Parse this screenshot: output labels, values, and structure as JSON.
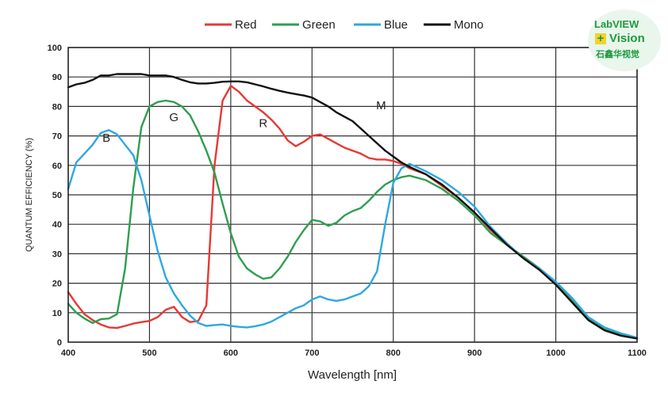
{
  "chart_data": {
    "type": "line",
    "title": "",
    "xlabel": "Wavelength [nm]",
    "ylabel": "QUANTUM EFFICIENCY (%)",
    "xlim": [
      400,
      1100
    ],
    "ylim": [
      0,
      100
    ],
    "xticks": [
      400,
      500,
      600,
      700,
      800,
      900,
      1000,
      1100
    ],
    "yticks": [
      0,
      10,
      20,
      30,
      40,
      50,
      60,
      70,
      80,
      90,
      100
    ],
    "grid": true,
    "legend_position": "top-center",
    "series": [
      {
        "name": "Red",
        "color": "#e53935",
        "tag": "R",
        "tag_at": [
          640,
          73
        ],
        "points": [
          [
            400,
            17
          ],
          [
            410,
            13
          ],
          [
            420,
            9.5
          ],
          [
            430,
            7.5
          ],
          [
            440,
            6
          ],
          [
            450,
            5
          ],
          [
            460,
            4.8
          ],
          [
            470,
            5.5
          ],
          [
            480,
            6.3
          ],
          [
            490,
            6.8
          ],
          [
            500,
            7.2
          ],
          [
            510,
            8.5
          ],
          [
            520,
            11
          ],
          [
            530,
            12
          ],
          [
            540,
            8.5
          ],
          [
            550,
            6.8
          ],
          [
            560,
            7.2
          ],
          [
            570,
            12.5
          ],
          [
            580,
            60
          ],
          [
            590,
            82
          ],
          [
            600,
            87
          ],
          [
            610,
            85
          ],
          [
            620,
            82
          ],
          [
            630,
            80
          ],
          [
            640,
            78
          ],
          [
            650,
            75.5
          ],
          [
            660,
            72.5
          ],
          [
            670,
            68.5
          ],
          [
            680,
            66.5
          ],
          [
            690,
            68
          ],
          [
            700,
            70
          ],
          [
            710,
            70.5
          ],
          [
            720,
            69
          ],
          [
            730,
            67.5
          ],
          [
            740,
            66
          ],
          [
            750,
            65
          ],
          [
            760,
            64
          ],
          [
            770,
            62.5
          ],
          [
            780,
            62
          ],
          [
            790,
            62
          ],
          [
            800,
            61.5
          ],
          [
            810,
            60.5
          ],
          [
            820,
            59
          ],
          [
            840,
            57
          ],
          [
            860,
            53
          ],
          [
            880,
            49
          ],
          [
            900,
            44
          ],
          [
            920,
            38
          ],
          [
            940,
            33
          ],
          [
            960,
            29
          ],
          [
            980,
            25
          ],
          [
            1000,
            20
          ],
          [
            1020,
            14
          ],
          [
            1040,
            8
          ],
          [
            1060,
            4.5
          ],
          [
            1080,
            2.5
          ],
          [
            1100,
            1.5
          ]
        ]
      },
      {
        "name": "Green",
        "color": "#2e9e4f",
        "tag": "G",
        "tag_at": [
          530,
          75
        ],
        "points": [
          [
            400,
            13
          ],
          [
            410,
            10
          ],
          [
            420,
            8
          ],
          [
            430,
            6.5
          ],
          [
            440,
            7.8
          ],
          [
            450,
            8
          ],
          [
            460,
            9.5
          ],
          [
            470,
            25
          ],
          [
            480,
            52
          ],
          [
            490,
            73
          ],
          [
            500,
            80
          ],
          [
            510,
            81.5
          ],
          [
            520,
            82
          ],
          [
            530,
            81.5
          ],
          [
            540,
            80
          ],
          [
            550,
            77
          ],
          [
            560,
            71.5
          ],
          [
            570,
            65
          ],
          [
            580,
            57.5
          ],
          [
            590,
            47
          ],
          [
            600,
            37
          ],
          [
            610,
            29
          ],
          [
            620,
            25
          ],
          [
            630,
            23
          ],
          [
            640,
            21.5
          ],
          [
            650,
            22
          ],
          [
            660,
            25
          ],
          [
            670,
            29
          ],
          [
            680,
            34
          ],
          [
            690,
            38
          ],
          [
            700,
            41.5
          ],
          [
            710,
            41
          ],
          [
            720,
            39.5
          ],
          [
            730,
            40.5
          ],
          [
            740,
            43
          ],
          [
            750,
            44.5
          ],
          [
            760,
            45.5
          ],
          [
            770,
            48
          ],
          [
            780,
            51
          ],
          [
            790,
            53.5
          ],
          [
            800,
            55
          ],
          [
            810,
            56
          ],
          [
            820,
            56.5
          ],
          [
            840,
            55
          ],
          [
            860,
            52
          ],
          [
            880,
            48
          ],
          [
            900,
            43
          ],
          [
            920,
            37
          ],
          [
            940,
            33
          ],
          [
            960,
            29
          ],
          [
            980,
            25
          ],
          [
            1000,
            19.5
          ],
          [
            1020,
            14
          ],
          [
            1040,
            8
          ],
          [
            1060,
            4.5
          ],
          [
            1080,
            2.5
          ],
          [
            1100,
            1.5
          ]
        ]
      },
      {
        "name": "Blue",
        "color": "#2ea8df",
        "tag": "B",
        "tag_at": [
          447,
          68
        ],
        "points": [
          [
            400,
            52
          ],
          [
            410,
            61
          ],
          [
            420,
            64
          ],
          [
            430,
            67
          ],
          [
            440,
            71
          ],
          [
            450,
            72
          ],
          [
            460,
            70.5
          ],
          [
            470,
            67
          ],
          [
            480,
            63.5
          ],
          [
            490,
            55
          ],
          [
            500,
            43
          ],
          [
            510,
            31
          ],
          [
            520,
            22
          ],
          [
            530,
            16.5
          ],
          [
            540,
            12.5
          ],
          [
            550,
            9
          ],
          [
            560,
            6.5
          ],
          [
            570,
            5.5
          ],
          [
            580,
            5.8
          ],
          [
            590,
            6
          ],
          [
            600,
            5.5
          ],
          [
            610,
            5.2
          ],
          [
            620,
            5
          ],
          [
            630,
            5.4
          ],
          [
            640,
            6
          ],
          [
            650,
            7
          ],
          [
            660,
            8.5
          ],
          [
            670,
            10
          ],
          [
            680,
            11.5
          ],
          [
            690,
            12.5
          ],
          [
            700,
            14.5
          ],
          [
            710,
            15.5
          ],
          [
            720,
            14.5
          ],
          [
            730,
            14
          ],
          [
            740,
            14.5
          ],
          [
            750,
            15.5
          ],
          [
            760,
            16.5
          ],
          [
            770,
            19
          ],
          [
            780,
            24
          ],
          [
            790,
            40
          ],
          [
            800,
            54
          ],
          [
            810,
            59
          ],
          [
            820,
            60.5
          ],
          [
            840,
            58
          ],
          [
            860,
            55
          ],
          [
            880,
            51
          ],
          [
            900,
            46
          ],
          [
            920,
            39
          ],
          [
            940,
            33.5
          ],
          [
            960,
            28.5
          ],
          [
            980,
            25
          ],
          [
            1000,
            20.5
          ],
          [
            1020,
            15
          ],
          [
            1040,
            8.5
          ],
          [
            1060,
            5
          ],
          [
            1080,
            3
          ],
          [
            1100,
            1.5
          ]
        ]
      },
      {
        "name": "Mono",
        "color": "#111111",
        "tag": "M",
        "tag_at": [
          785,
          79
        ],
        "points": [
          [
            400,
            86.5
          ],
          [
            410,
            87.5
          ],
          [
            420,
            88
          ],
          [
            430,
            89
          ],
          [
            440,
            90.5
          ],
          [
            450,
            90.5
          ],
          [
            460,
            91
          ],
          [
            470,
            91
          ],
          [
            480,
            91
          ],
          [
            490,
            91
          ],
          [
            500,
            90.5
          ],
          [
            510,
            90.5
          ],
          [
            520,
            90.5
          ],
          [
            530,
            90
          ],
          [
            540,
            89
          ],
          [
            550,
            88.2
          ],
          [
            560,
            87.8
          ],
          [
            570,
            87.8
          ],
          [
            580,
            88
          ],
          [
            590,
            88.4
          ],
          [
            600,
            88.5
          ],
          [
            610,
            88.5
          ],
          [
            620,
            88.2
          ],
          [
            630,
            87.5
          ],
          [
            640,
            86.8
          ],
          [
            650,
            86
          ],
          [
            660,
            85.3
          ],
          [
            670,
            84.7
          ],
          [
            680,
            84.2
          ],
          [
            690,
            83.7
          ],
          [
            700,
            83
          ],
          [
            710,
            81.5
          ],
          [
            720,
            80
          ],
          [
            730,
            78
          ],
          [
            740,
            76.5
          ],
          [
            750,
            75
          ],
          [
            760,
            72.5
          ],
          [
            770,
            70
          ],
          [
            780,
            67.5
          ],
          [
            790,
            65
          ],
          [
            800,
            63
          ],
          [
            810,
            61
          ],
          [
            820,
            59.5
          ],
          [
            840,
            57
          ],
          [
            860,
            53.5
          ],
          [
            880,
            49
          ],
          [
            900,
            44
          ],
          [
            920,
            38.5
          ],
          [
            940,
            33
          ],
          [
            960,
            28.5
          ],
          [
            980,
            24.5
          ],
          [
            1000,
            19.5
          ],
          [
            1020,
            13.5
          ],
          [
            1040,
            7.5
          ],
          [
            1060,
            4
          ],
          [
            1080,
            2.2
          ],
          [
            1100,
            1.2
          ]
        ]
      }
    ]
  },
  "watermark": {
    "line1": "LabVIEW",
    "plus": "+",
    "line2": "Vision",
    "line3": "石鑫华视觉"
  }
}
